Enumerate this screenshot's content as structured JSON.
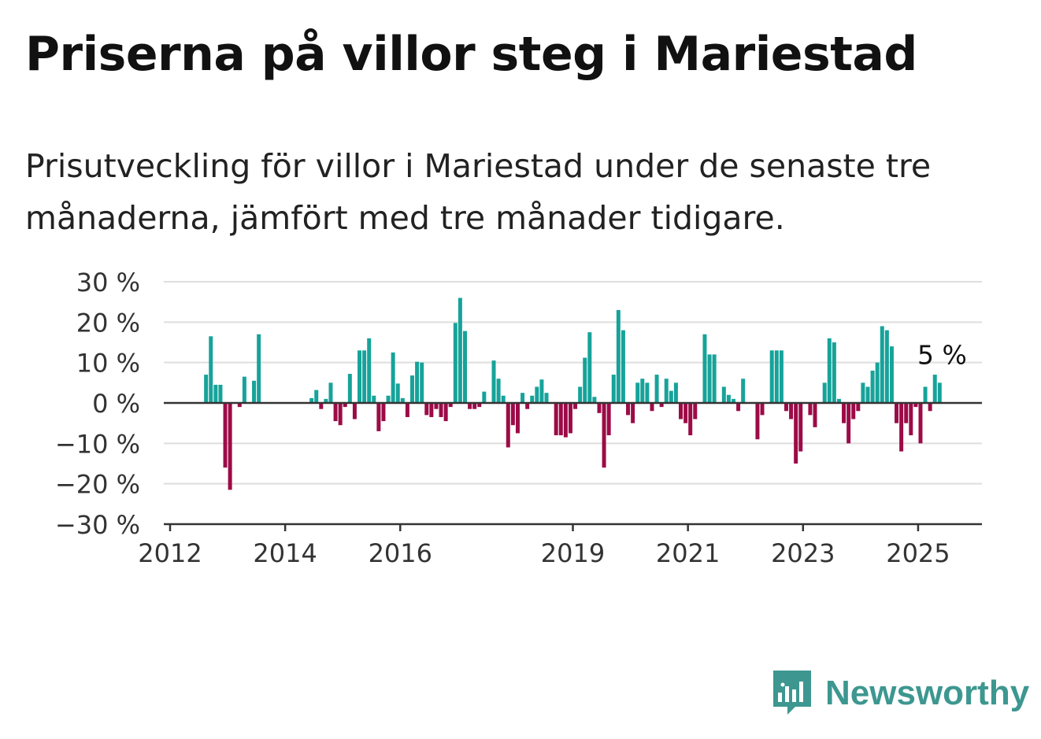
{
  "title": "Priserna på villor steg i Mariestad",
  "subtitle": "Prisutveckling för villor i Mariestad under de senaste tre månaderna, jämfört med tre månader tidigare.",
  "brand": {
    "name": "Newsworthy",
    "icon": "newsworthy-chart-icon",
    "color": "#3d9790"
  },
  "chart_data": {
    "type": "bar",
    "x_unit": "month",
    "y_unit": "%",
    "ylim": [
      -30,
      30
    ],
    "yticks": [
      30,
      20,
      10,
      0,
      -10,
      -20,
      -30
    ],
    "ytick_labels": [
      "30 %",
      "20 %",
      "10 %",
      "0 %",
      "−10 %",
      "−20 %",
      "−30 %"
    ],
    "xticks": [
      "2012",
      "2014",
      "2016",
      "2019",
      "2021",
      "2023",
      "2025"
    ],
    "xlim": [
      "2012-01",
      "2026-01"
    ],
    "grid": true,
    "colors": {
      "positive": "#16a39a",
      "negative": "#9c0b47"
    },
    "annotation": {
      "text": "5 %",
      "at": "2025-06"
    },
    "points": [
      [
        "2012-08",
        7
      ],
      [
        "2012-09",
        16.5
      ],
      [
        "2012-10",
        4.5
      ],
      [
        "2012-11",
        4.5
      ],
      [
        "2012-12",
        -16
      ],
      [
        "2013-01",
        -21.5
      ],
      [
        "2013-03",
        -1
      ],
      [
        "2013-04",
        6.5
      ],
      [
        "2013-06",
        5.5
      ],
      [
        "2013-07",
        17
      ],
      [
        "2014-06",
        1.2
      ],
      [
        "2014-07",
        3.2
      ],
      [
        "2014-08",
        -1.5
      ],
      [
        "2014-09",
        1
      ],
      [
        "2014-10",
        5
      ],
      [
        "2014-11",
        -4.5
      ],
      [
        "2014-12",
        -5.5
      ],
      [
        "2015-01",
        -1
      ],
      [
        "2015-02",
        7.2
      ],
      [
        "2015-03",
        -4
      ],
      [
        "2015-04",
        13
      ],
      [
        "2015-05",
        13
      ],
      [
        "2015-06",
        16
      ],
      [
        "2015-07",
        1.8
      ],
      [
        "2015-08",
        -7
      ],
      [
        "2015-09",
        -4.5
      ],
      [
        "2015-10",
        1.8
      ],
      [
        "2015-11",
        12.5
      ],
      [
        "2015-12",
        4.8
      ],
      [
        "2016-01",
        1.2
      ],
      [
        "2016-02",
        -3.5
      ],
      [
        "2016-03",
        6.8
      ],
      [
        "2016-04",
        10.2
      ],
      [
        "2016-05",
        10
      ],
      [
        "2016-06",
        -3
      ],
      [
        "2016-07",
        -3.5
      ],
      [
        "2016-08",
        -1.5
      ],
      [
        "2016-09",
        -3.5
      ],
      [
        "2016-10",
        -4.5
      ],
      [
        "2016-11",
        -1
      ],
      [
        "2016-12",
        19.8
      ],
      [
        "2017-01",
        26
      ],
      [
        "2017-02",
        17.8
      ],
      [
        "2017-03",
        -1.5
      ],
      [
        "2017-04",
        -1.5
      ],
      [
        "2017-05",
        -1
      ],
      [
        "2017-06",
        2.8
      ],
      [
        "2017-08",
        10.5
      ],
      [
        "2017-09",
        6
      ],
      [
        "2017-10",
        1.8
      ],
      [
        "2017-11",
        -11
      ],
      [
        "2017-12",
        -5.5
      ],
      [
        "2018-01",
        -7.5
      ],
      [
        "2018-02",
        2.5
      ],
      [
        "2018-03",
        -1.5
      ],
      [
        "2018-04",
        1.8
      ],
      [
        "2018-05",
        4
      ],
      [
        "2018-06",
        5.8
      ],
      [
        "2018-07",
        2.5
      ],
      [
        "2018-09",
        -8
      ],
      [
        "2018-10",
        -8
      ],
      [
        "2018-11",
        -8.5
      ],
      [
        "2018-12",
        -7.5
      ],
      [
        "2019-01",
        -1.5
      ],
      [
        "2019-02",
        4
      ],
      [
        "2019-03",
        11.2
      ],
      [
        "2019-04",
        17.5
      ],
      [
        "2019-05",
        1.5
      ],
      [
        "2019-06",
        -2.5
      ],
      [
        "2019-07",
        -16
      ],
      [
        "2019-08",
        -8
      ],
      [
        "2019-09",
        7
      ],
      [
        "2019-10",
        23
      ],
      [
        "2019-11",
        18
      ],
      [
        "2019-12",
        -3
      ],
      [
        "2020-01",
        -5
      ],
      [
        "2020-02",
        5
      ],
      [
        "2020-03",
        6
      ],
      [
        "2020-04",
        5
      ],
      [
        "2020-05",
        -2
      ],
      [
        "2020-06",
        7
      ],
      [
        "2020-07",
        -1
      ],
      [
        "2020-08",
        6
      ],
      [
        "2020-09",
        3
      ],
      [
        "2020-10",
        5
      ],
      [
        "2020-11",
        -4
      ],
      [
        "2020-12",
        -5
      ],
      [
        "2021-01",
        -8
      ],
      [
        "2021-02",
        -4
      ],
      [
        "2021-04",
        17
      ],
      [
        "2021-05",
        12
      ],
      [
        "2021-06",
        12
      ],
      [
        "2021-08",
        4
      ],
      [
        "2021-09",
        2
      ],
      [
        "2021-10",
        1
      ],
      [
        "2021-11",
        -2
      ],
      [
        "2021-12",
        6
      ],
      [
        "2022-03",
        -9
      ],
      [
        "2022-04",
        -3
      ],
      [
        "2022-06",
        13
      ],
      [
        "2022-07",
        13
      ],
      [
        "2022-08",
        13
      ],
      [
        "2022-09",
        -2
      ],
      [
        "2022-10",
        -4
      ],
      [
        "2022-11",
        -15
      ],
      [
        "2022-12",
        -12
      ],
      [
        "2023-02",
        -3
      ],
      [
        "2023-03",
        -6
      ],
      [
        "2023-05",
        5
      ],
      [
        "2023-06",
        16
      ],
      [
        "2023-07",
        15
      ],
      [
        "2023-08",
        1
      ],
      [
        "2023-09",
        -5
      ],
      [
        "2023-10",
        -10
      ],
      [
        "2023-11",
        -4
      ],
      [
        "2023-12",
        -2
      ],
      [
        "2024-01",
        5
      ],
      [
        "2024-02",
        4
      ],
      [
        "2024-03",
        8
      ],
      [
        "2024-04",
        10
      ],
      [
        "2024-05",
        19
      ],
      [
        "2024-06",
        18
      ],
      [
        "2024-07",
        14
      ],
      [
        "2024-08",
        -5
      ],
      [
        "2024-09",
        -12
      ],
      [
        "2024-10",
        -5
      ],
      [
        "2024-11",
        -8
      ],
      [
        "2024-12",
        -1
      ],
      [
        "2025-01",
        -10
      ],
      [
        "2025-02",
        4
      ],
      [
        "2025-03",
        -2
      ],
      [
        "2025-04",
        7
      ],
      [
        "2025-05",
        5
      ]
    ]
  }
}
